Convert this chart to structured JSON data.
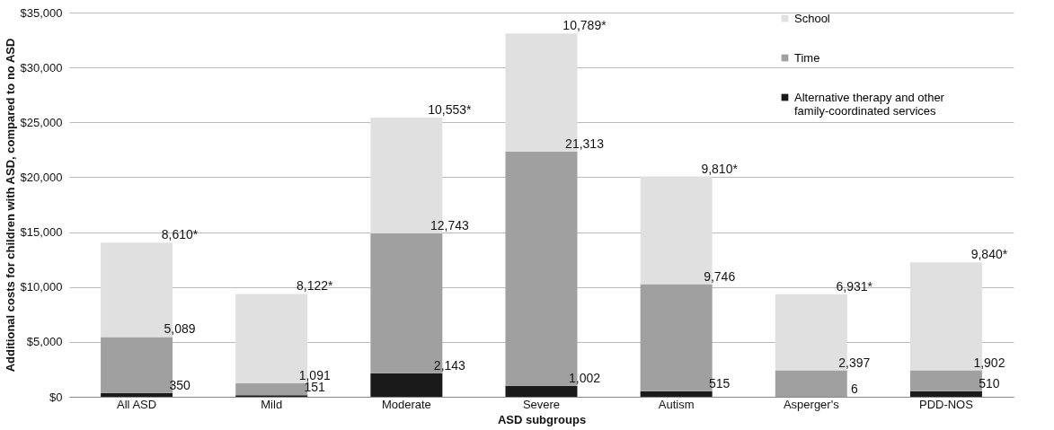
{
  "chart_data": {
    "type": "bar",
    "stacked": true,
    "xlabel": "ASD subgroups",
    "ylabel": "Additional costs for children with ASD, compared to no ASD",
    "categories": [
      "All ASD",
      "Mild",
      "Moderate",
      "Severe",
      "Autism",
      "Asperger's",
      "PDD-NOS"
    ],
    "series": [
      {
        "name": "Alternative therapy and other family-coordinated services",
        "color": "#1a1a1a",
        "values": [
          350,
          151,
          2143,
          1002,
          515,
          6,
          510
        ],
        "value_labels": [
          "350",
          "151",
          "2,143",
          "1,002",
          "515",
          "6",
          "510"
        ]
      },
      {
        "name": "Time",
        "color": "#a0a0a0",
        "values": [
          5089,
          1091,
          12743,
          21313,
          9746,
          2397,
          1902
        ],
        "value_labels": [
          "5,089",
          "1,091",
          "12,743",
          "21,313",
          "9,746",
          "2,397",
          "1,902"
        ]
      },
      {
        "name": "School",
        "color": "#e0e0e0",
        "values": [
          8610,
          8122,
          10553,
          10789,
          9810,
          6931,
          9840
        ],
        "value_labels": [
          "8,610*",
          "8,122*",
          "10,553*",
          "10,789*",
          "9,810*",
          "6,931*",
          "9,840*"
        ]
      }
    ],
    "ylim": [
      0,
      35000
    ],
    "yticks": [
      {
        "value": 0,
        "label": "$0"
      },
      {
        "value": 5000,
        "label": "$5,000"
      },
      {
        "value": 10000,
        "label": "$10,000"
      },
      {
        "value": 15000,
        "label": "$15,000"
      },
      {
        "value": 20000,
        "label": "$20,000"
      },
      {
        "value": 25000,
        "label": "$25,000"
      },
      {
        "value": 30000,
        "label": "$30,000"
      },
      {
        "value": 35000,
        "label": "$35,000"
      }
    ],
    "grid": "y",
    "legend": "top right"
  }
}
